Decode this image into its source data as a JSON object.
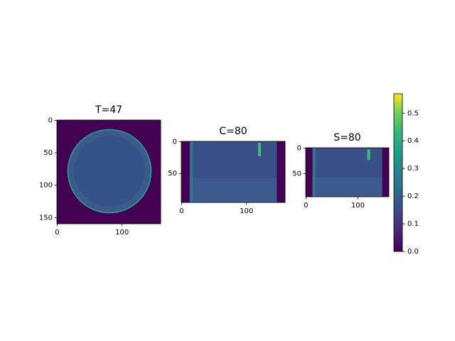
{
  "chart_data": [
    {
      "type": "image",
      "title": "T=47",
      "xlim": [
        -0.5,
        159.5
      ],
      "ylim": [
        159.5,
        -0.5
      ],
      "xticks": [
        0,
        100
      ],
      "yticks": [
        0,
        50,
        100,
        150
      ]
    },
    {
      "type": "image",
      "title": "C=80",
      "xlim": [
        -0.5,
        159.5
      ],
      "ylim": [
        95.5,
        -0.5
      ],
      "xticks": [
        0,
        100
      ],
      "yticks": [
        0,
        50
      ]
    },
    {
      "type": "image",
      "title": "S=80",
      "xlim": [
        -0.5,
        159.5
      ],
      "ylim": [
        95.5,
        -0.5
      ],
      "xticks": [
        0,
        100
      ],
      "yticks": [
        0,
        50
      ]
    },
    {
      "type": "colorbar",
      "colormap": "viridis",
      "clim": [
        0,
        0.57
      ],
      "ticks": [
        {
          "value": 0,
          "label": "0.0"
        },
        0.1,
        0.2,
        0.3,
        0.4,
        0.5
      ]
    }
  ]
}
